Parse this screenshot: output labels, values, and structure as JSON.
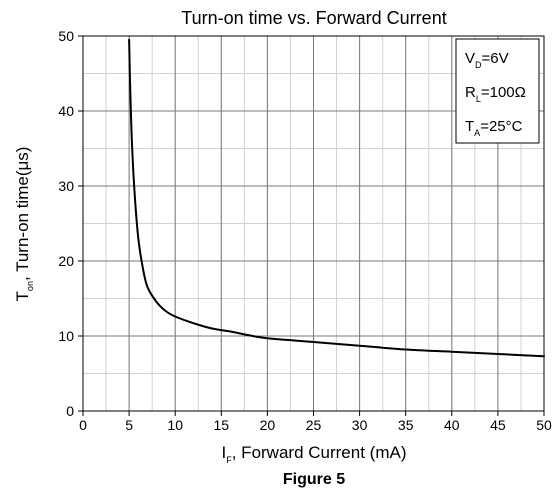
{
  "chart_data": {
    "type": "line",
    "title": "Turn-on time vs. Forward Current",
    "xlabel": {
      "main": "I",
      "sub": "F",
      "rest": ", Forward Current (mA)"
    },
    "ylabel": {
      "main": "T",
      "sub": "on",
      "rest": ", Turn-on time(μs)"
    },
    "figure_caption": "Figure 5",
    "xlim": [
      0,
      50
    ],
    "ylim": [
      0,
      50
    ],
    "x_ticks": [
      0,
      5,
      10,
      15,
      20,
      25,
      30,
      35,
      40,
      45,
      50
    ],
    "y_ticks": [
      0,
      10,
      20,
      30,
      40,
      50
    ],
    "minor_grid_x_step": 2.5,
    "minor_grid_y_step": 5,
    "grid": true,
    "conditions": [
      {
        "main": "V",
        "sub": "D",
        "rest": "=6V"
      },
      {
        "main": "R",
        "sub": "L",
        "rest": "=100Ω"
      },
      {
        "main": "T",
        "sub": "A",
        "rest": "=25°C"
      }
    ],
    "legend_position": "top-right",
    "series": [
      {
        "color": "#000000",
        "points": [
          [
            5,
            49.5
          ],
          [
            5.1,
            44
          ],
          [
            5.3,
            36
          ],
          [
            5.6,
            29
          ],
          [
            6,
            23
          ],
          [
            6.5,
            19
          ],
          [
            7,
            16.5
          ],
          [
            8,
            14.5
          ],
          [
            9,
            13.3
          ],
          [
            10,
            12.6
          ],
          [
            12,
            11.7
          ],
          [
            14,
            11
          ],
          [
            16,
            10.6
          ],
          [
            18,
            10.1
          ],
          [
            20,
            9.7
          ],
          [
            25,
            9.2
          ],
          [
            30,
            8.7
          ],
          [
            35,
            8.2
          ],
          [
            40,
            7.9
          ],
          [
            45,
            7.6
          ],
          [
            50,
            7.3
          ]
        ]
      }
    ]
  }
}
